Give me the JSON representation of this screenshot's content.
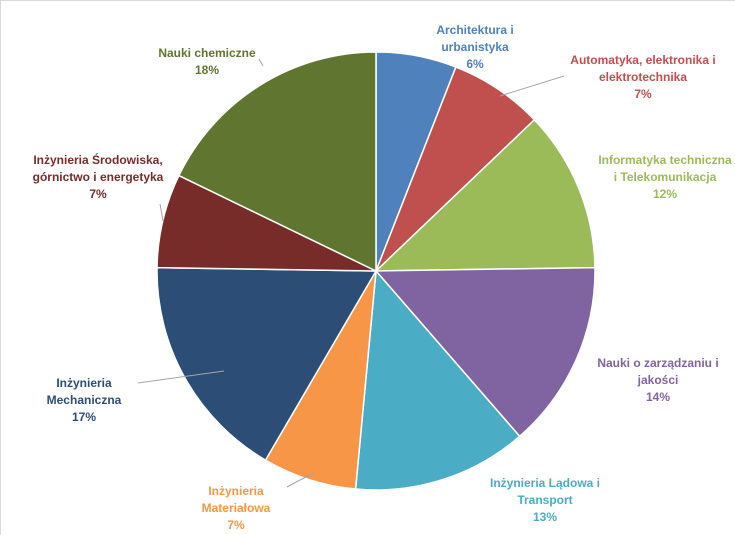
{
  "chart_data": {
    "type": "pie",
    "title": "",
    "start_angle_deg": 0,
    "direction": "clockwise",
    "slices": [
      {
        "label": "Architektura i urbanistyka",
        "label_lines": [
          "Architektura i",
          "urbanistyka"
        ],
        "value": 6,
        "value_text": "6%",
        "color": "#4f81bd"
      },
      {
        "label": "Automatyka, elektronika i elektrotechnika",
        "label_lines": [
          "Automatyka, elektronika i",
          "elektrotechnika"
        ],
        "value": 7,
        "value_text": "7%",
        "color": "#c0504d"
      },
      {
        "label": "Informatyka techniczna i Telekomunikacja",
        "label_lines": [
          "Informatyka techniczna",
          "i Telekomunikacja"
        ],
        "value": 12,
        "value_text": "12%",
        "color": "#9bbb59"
      },
      {
        "label": "Nauki o zarządzaniu i jakości",
        "label_lines": [
          "Nauki o zarządzaniu i",
          "jakości"
        ],
        "value": 14,
        "value_text": "14%",
        "color": "#8064a2"
      },
      {
        "label": "Inżynieria Lądowa i Transport",
        "label_lines": [
          "Inżynieria Lądowa i",
          "Transport"
        ],
        "value": 13,
        "value_text": "13%",
        "color": "#4bacc6"
      },
      {
        "label": "Inżynieria Materiałowa",
        "label_lines": [
          "Inżynieria",
          "Materiałowa"
        ],
        "value": 7,
        "value_text": "7%",
        "color": "#f79646"
      },
      {
        "label": "Inżynieria Mechaniczna",
        "label_lines": [
          "Inżynieria",
          "Mechaniczna"
        ],
        "value": 17,
        "value_text": "17%",
        "color": "#2c4d75"
      },
      {
        "label": "Inżynieria Środowiska, górnictwo i energetyka",
        "label_lines": [
          "Inżynieria Środowiska,",
          "górnictwo i energetyka"
        ],
        "value": 7,
        "value_text": "7%",
        "color": "#772c2a"
      },
      {
        "label": "Nauki chemiczne",
        "label_lines": [
          "Nauki chemiczne"
        ],
        "value": 18,
        "value_text": "18%",
        "color": "#5f7530"
      }
    ]
  }
}
